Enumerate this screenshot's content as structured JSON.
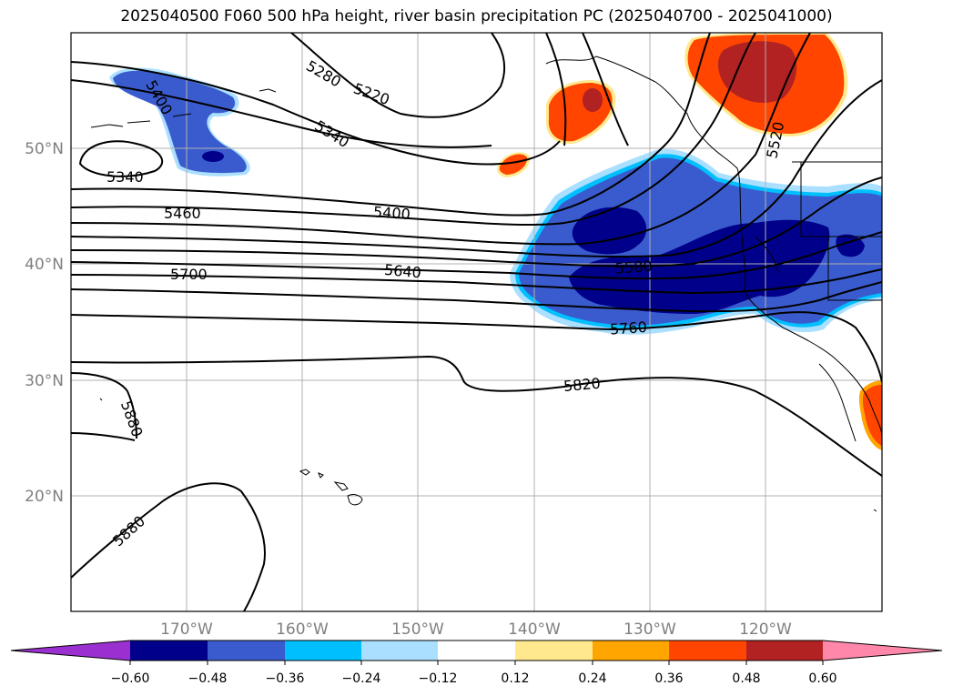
{
  "title": "2025040500 F060 500 hPa height, river basin precipitation PC (2025040700 - 2025041000)",
  "map": {
    "lon_range": [
      -180,
      -110
    ],
    "lat_range": [
      10,
      60
    ],
    "lat_ticks": [
      "50°N",
      "40°N",
      "30°N",
      "20°N"
    ],
    "lon_ticks": [
      "170°W",
      "160°W",
      "150°W",
      "140°W",
      "130°W",
      "120°W"
    ],
    "contour_labels": [
      "5400",
      "5280",
      "5220",
      "5340",
      "5340",
      "5460",
      "5400",
      "5700",
      "5640",
      "5580",
      "5760",
      "5820",
      "5880",
      "5880",
      "5520"
    ]
  },
  "colorbar": {
    "tick_labels": [
      "−0.60",
      "−0.48",
      "−0.36",
      "−0.24",
      "−0.12",
      "0.12",
      "0.24",
      "0.36",
      "0.48",
      "0.60"
    ],
    "colors": [
      "#9b30d0",
      "#00008b",
      "#3a5bcd",
      "#00bfff",
      "#aadfff",
      "#ffffff",
      "#ffe98c",
      "#ffa500",
      "#ff4500",
      "#b22222",
      "#ff88aa"
    ]
  }
}
